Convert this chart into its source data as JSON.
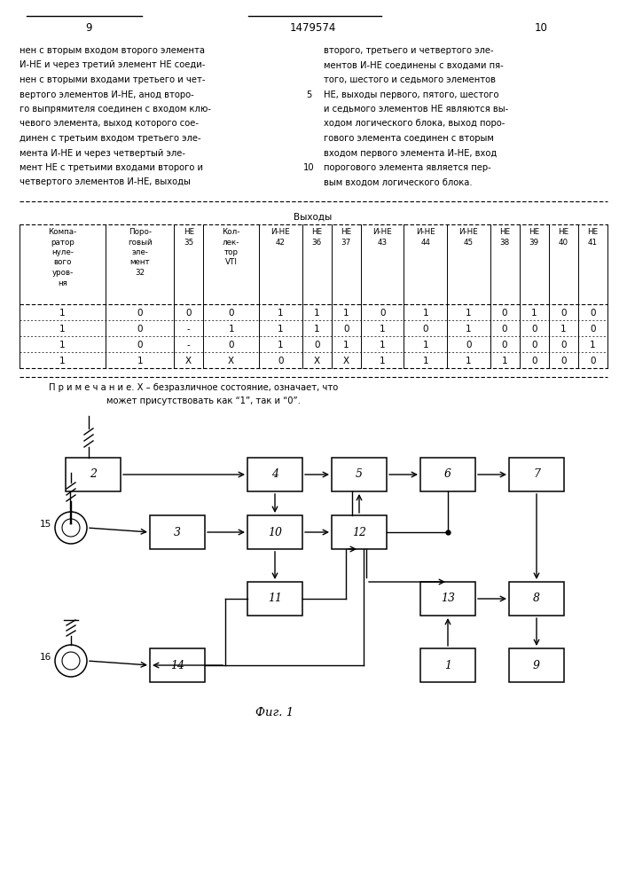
{
  "page_number_left": "9",
  "patent_number": "1479574",
  "page_number_right": "10",
  "text_left": "нен с вторым входом второго элемента\nИ-НЕ и через третий элемент НЕ соеди-\nнен с вторыми входами третьего и чет-\nвертого элементов И-НЕ, анод второ-\nго выпрямителя соединен с входом клю-\nчевого элемента, выход которого сое-\nдинен с третьим входом третьего эле-\nмента И-НЕ и через четвертый эле-\nмент НЕ с третьими входами второго и\nчетвертого элементов И-НЕ, выходы",
  "text_right": "второго, третьего и четвертого эле-\nментов И-НЕ соединены с входами пя-\nтого, шестого и седьмого элементов\nНЕ, выходы первого, пятого, шестого\nи седьмого элементов НЕ являются вы-\nходом логического блока, выход поро-\nгового элемента соединен с вторым\nвходом первого элемента И-НЕ, вход\nпорогового элемента является пер-\nвым входом логического блока.",
  "note_line1": "П р и м е ч а н и е. X – безразличное состояние, означает, что",
  "note_line2": "может присутствовать как “1”, так и “0”.",
  "fig_caption": "Фиг. 1",
  "table_data": [
    [
      "1",
      "0",
      "0",
      "0",
      "1",
      "1",
      "1",
      "0",
      "1",
      "1",
      "0",
      "1",
      "0",
      "0"
    ],
    [
      "1",
      "0",
      "-",
      "1",
      "1",
      "1",
      "0",
      "1",
      "0",
      "1",
      "0",
      "0",
      "1",
      "0"
    ],
    [
      "1",
      "0",
      "-",
      "0",
      "1",
      "0",
      "1",
      "1",
      "1",
      "0",
      "0",
      "0",
      "0",
      "1"
    ],
    [
      "1",
      "1",
      "X",
      "X",
      "0",
      "X",
      "X",
      "1",
      "1",
      "1",
      "1",
      "0",
      "0",
      "0"
    ]
  ],
  "line5": "5",
  "line10": "10"
}
